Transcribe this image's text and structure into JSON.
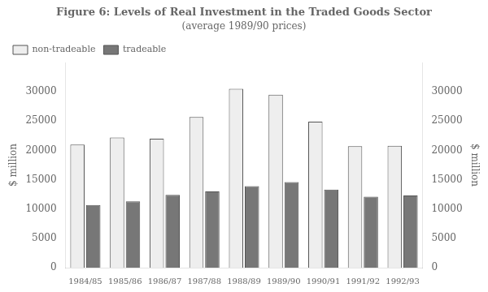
{
  "chart_data": {
    "type": "bar",
    "title": "Figure 6: Levels of Real Investment in the Traded Goods Sector",
    "subtitle": "(average 1989/90 prices)",
    "categories": [
      "1984/85",
      "1985/86",
      "1986/87",
      "1987/88",
      "1988/89",
      "1989/90",
      "1990/91",
      "1991/92",
      "1992/93"
    ],
    "series": [
      {
        "name": "non-tradeable",
        "color": "#eeeeee",
        "values": [
          21000,
          22200,
          22000,
          25700,
          30500,
          29500,
          24900,
          20700,
          20800
        ]
      },
      {
        "name": "tradeable",
        "color": "#777777",
        "values": [
          10700,
          11300,
          12400,
          13000,
          13900,
          14600,
          13300,
          12100,
          12300
        ]
      }
    ],
    "ylabel": "$ million",
    "y2label": "$ million",
    "ylim": [
      0,
      35000
    ],
    "yticks": [
      0,
      5000,
      10000,
      15000,
      20000,
      25000,
      30000
    ],
    "y2lim": [
      0,
      35000
    ],
    "y2ticks": [
      0,
      5000,
      10000,
      15000,
      20000,
      25000,
      30000
    ],
    "legend": "upper left",
    "grid": false
  }
}
